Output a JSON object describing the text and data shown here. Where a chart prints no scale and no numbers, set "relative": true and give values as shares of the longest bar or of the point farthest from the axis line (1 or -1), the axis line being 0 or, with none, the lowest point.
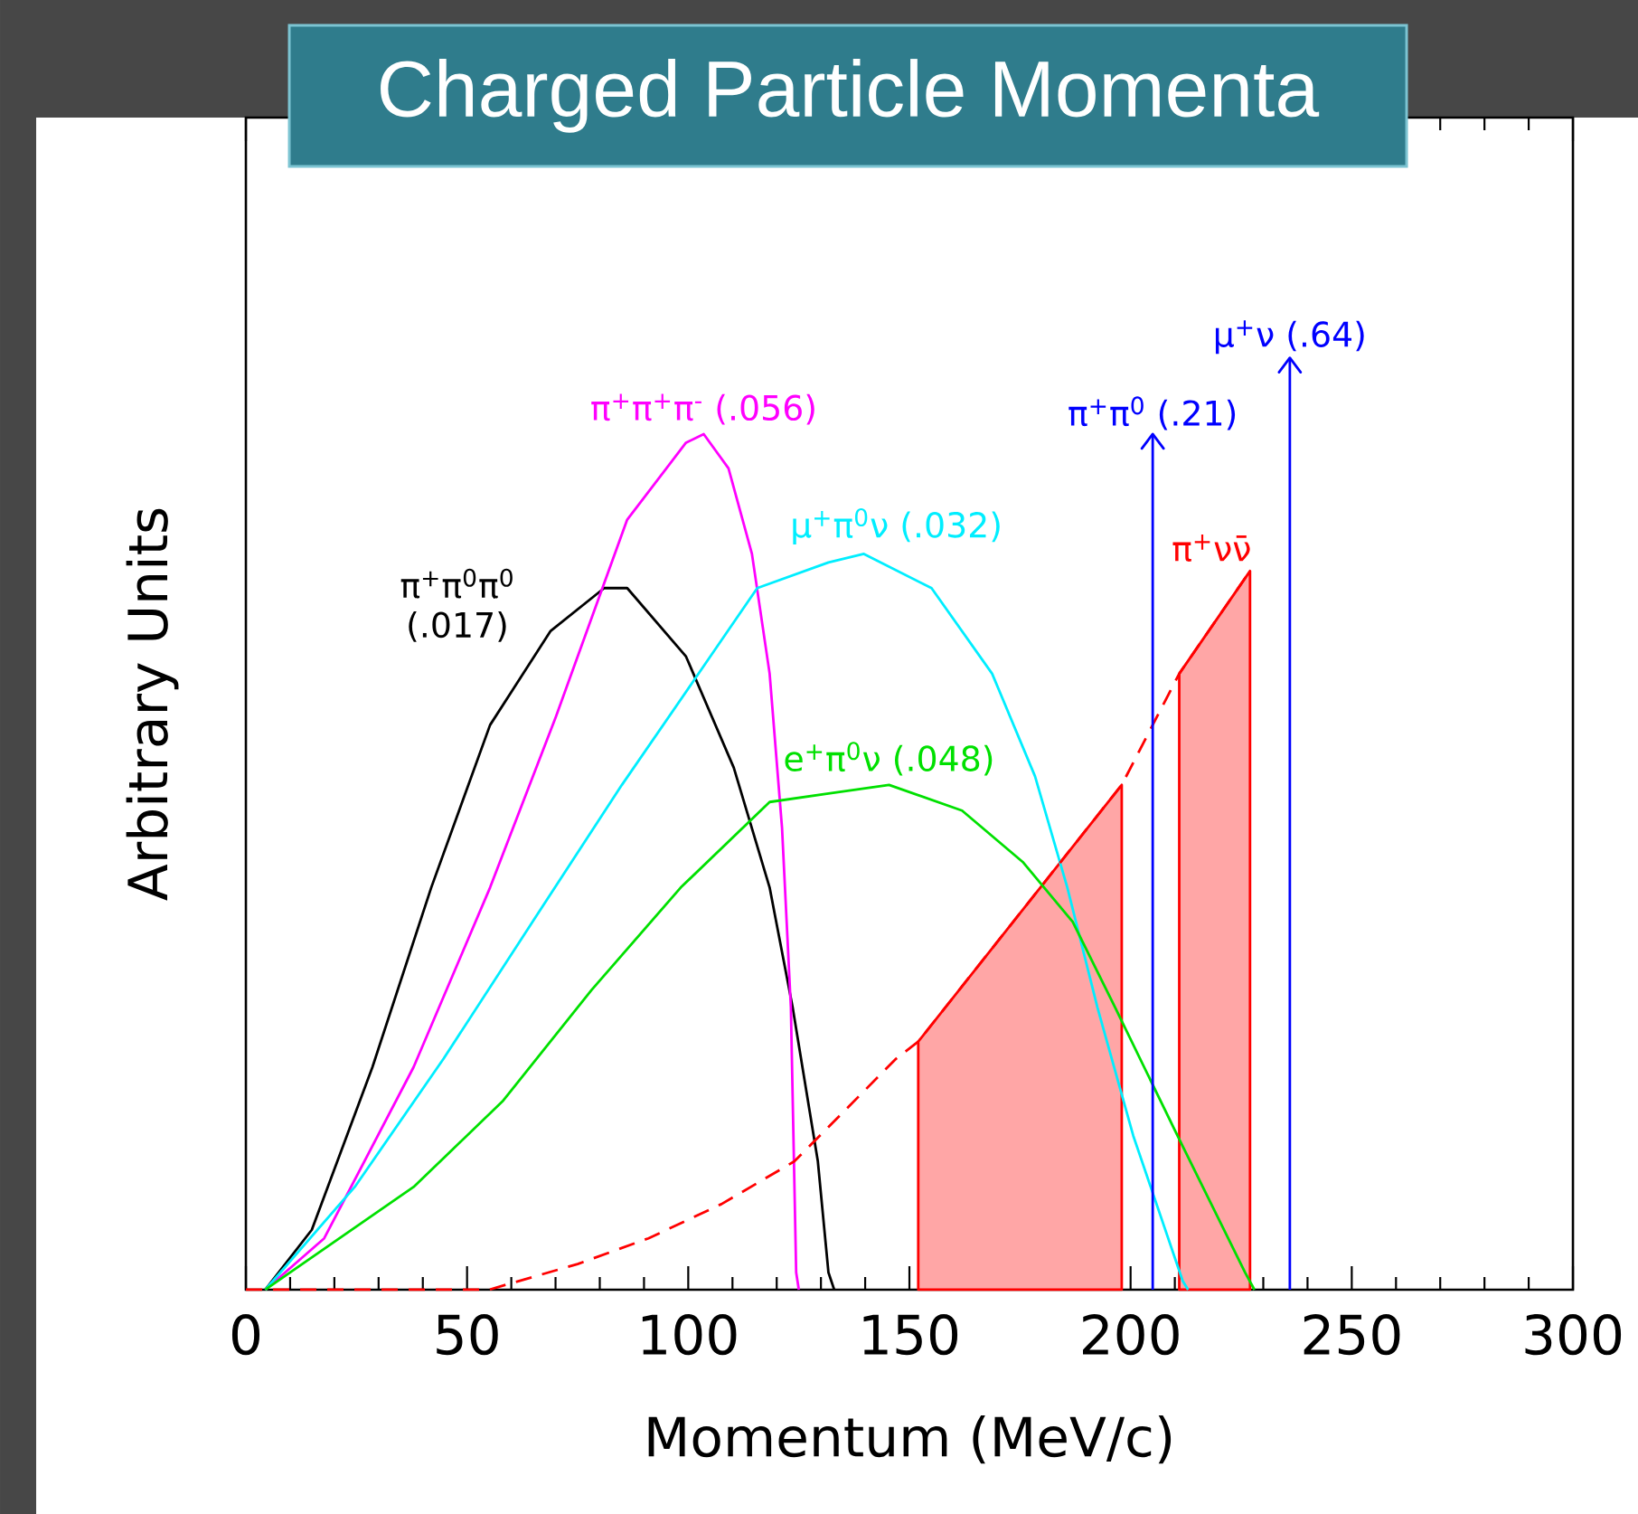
{
  "chart_data": {
    "type": "line",
    "title": "Charged Particle Momenta",
    "xlabel": "Momentum (MeV/c)",
    "ylabel": "Arbitrary Units",
    "xlim": [
      0,
      300
    ],
    "xticks": [
      0,
      50,
      100,
      150,
      200,
      250,
      300
    ],
    "relative": true,
    "series": [
      {
        "name": "π$^{+}$π$^{0}$π$^{0}$ (.017)",
        "color": "#000000",
        "x": [
          4.4,
          14.9,
          28.6,
          41.9,
          55.2,
          68.9,
          81,
          86.2,
          99.5,
          110.3,
          118.4,
          123.6,
          129.3,
          131.7,
          133
        ],
        "values": [
          0,
          0.07,
          0.26,
          0.47,
          0.66,
          0.77,
          0.82,
          0.82,
          0.74,
          0.61,
          0.47,
          0.33,
          0.15,
          0.02,
          0
        ]
      },
      {
        "name": "π$^{+}$π$^{+}$π$^{-}$ (.056)",
        "color": "#ff00ff",
        "x": [
          4.4,
          17.7,
          37.9,
          55.2,
          70.1,
          86.2,
          99.5,
          103.5,
          109.1,
          114.4,
          118.4,
          121.2,
          123.2,
          124.4,
          125
        ],
        "values": [
          0,
          0.06,
          0.26,
          0.47,
          0.67,
          0.9,
          0.99,
          1.0,
          0.96,
          0.86,
          0.72,
          0.54,
          0.33,
          0.02,
          0
        ]
      },
      {
        "name": "μ$^{+}$π$^{0}$ν (.032)",
        "color": "#00eeff",
        "x": [
          4.4,
          24.6,
          44.7,
          64.8,
          85,
          101,
          115.6,
          131.7,
          139.7,
          155,
          168.7,
          178.4,
          185.7,
          192.5,
          200.6,
          211.8,
          213
        ],
        "values": [
          0,
          0.12,
          0.27,
          0.43,
          0.59,
          0.71,
          0.82,
          0.85,
          0.86,
          0.82,
          0.72,
          0.6,
          0.47,
          0.33,
          0.18,
          0.01,
          0
        ]
      },
      {
        "name": "e$^{+}$π$^{0}$ν (.048)",
        "color": "#00e000",
        "x": [
          4.4,
          37.9,
          58,
          78.1,
          98.3,
          118.4,
          131.7,
          145.4,
          161.9,
          175.6,
          186.9,
          196.5,
          210.6,
          225.9,
          228
        ],
        "values": [
          0,
          0.12,
          0.22,
          0.35,
          0.47,
          0.57,
          0.58,
          0.59,
          0.56,
          0.5,
          0.43,
          0.33,
          0.18,
          0.02,
          0
        ]
      },
      {
        "name": "π$^{+}$νν̄",
        "color": "#ff0000",
        "line_style": "dashed",
        "x": [
          0,
          55,
          75,
          91,
          107.5,
          124,
          147,
          152,
          198,
          211,
          227
        ],
        "values": [
          0,
          0,
          0.03,
          0.06,
          0.1,
          0.15,
          0.27,
          0.29,
          0.59,
          0.72,
          0.84
        ]
      },
      {
        "type": "area",
        "color": "#ff0000",
        "x": [
          152,
          198
        ],
        "values": [
          0.29,
          0.59
        ]
      },
      {
        "type": "area",
        "color": "#ff0000",
        "x": [
          211,
          227
        ],
        "values": [
          0.72,
          0.84
        ]
      }
    ],
    "ref_lines": [
      {
        "axis": "x",
        "value": 205,
        "label": "π$^{+}$π$^{0}$ (.21)",
        "color": "#0000ff"
      },
      {
        "axis": "x",
        "value": 236,
        "label": "μ$^{+}$ν (.64)",
        "color": "#0000ff"
      }
    ]
  }
}
